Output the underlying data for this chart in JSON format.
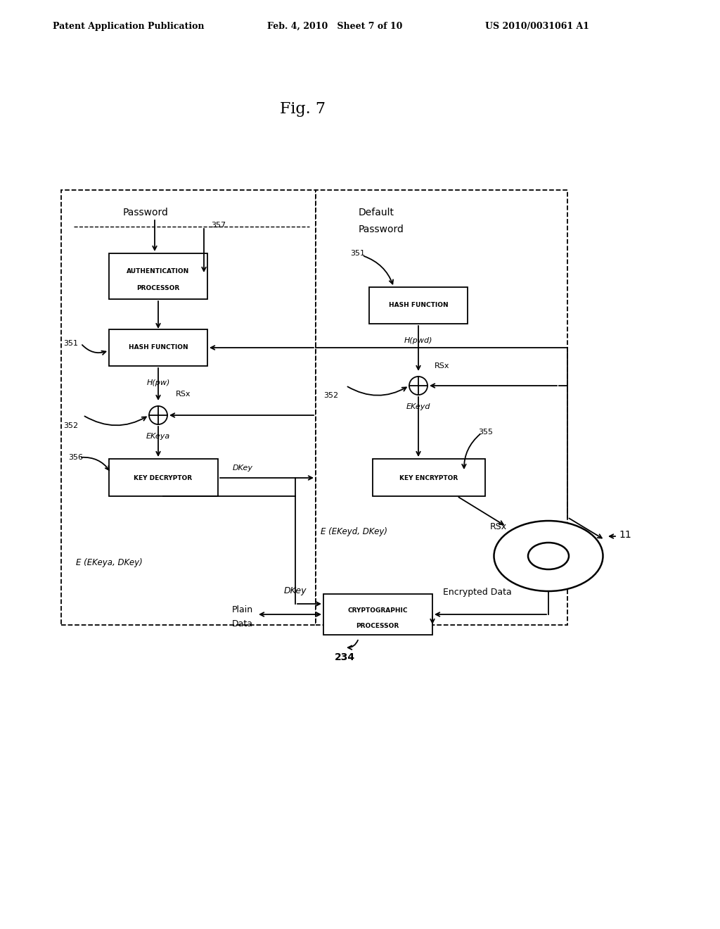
{
  "title": "Fig. 7",
  "header_left": "Patent Application Publication",
  "header_mid": "Feb. 4, 2010   Sheet 7 of 10",
  "header_right": "US 2010/0031061 A1",
  "background": "#ffffff",
  "text_color": "#000000"
}
